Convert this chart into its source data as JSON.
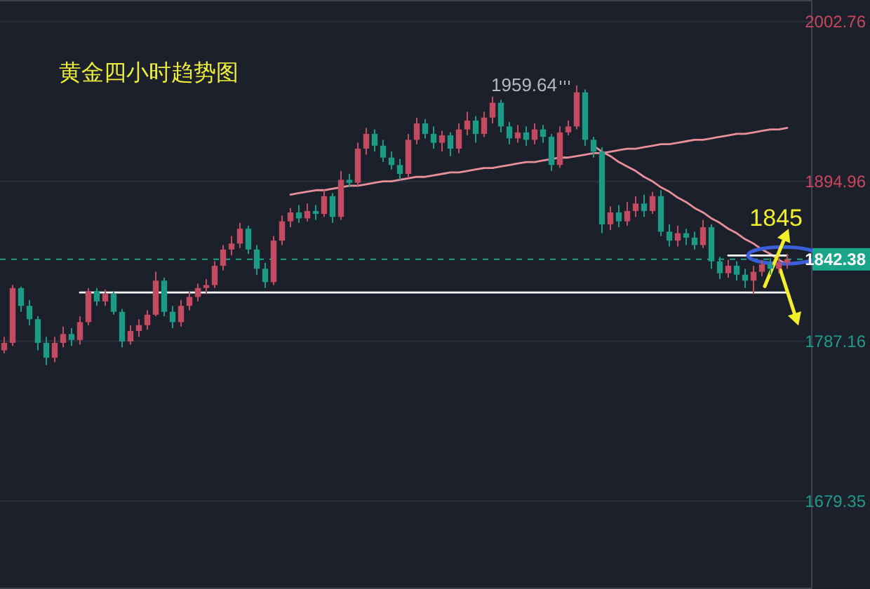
{
  "chart_data": {
    "type": "candlestick",
    "title": "黄金四小时趋势图",
    "categories": [
      null,
      null,
      null,
      null,
      null,
      null,
      null,
      null,
      null,
      null,
      null,
      null,
      null,
      null,
      null,
      null,
      null,
      null,
      null,
      null,
      null,
      null,
      null,
      null,
      null,
      null,
      null,
      null,
      null,
      null,
      null,
      null,
      null,
      null,
      null,
      null,
      null,
      null,
      null,
      null,
      null,
      null,
      null,
      null,
      null,
      null,
      null,
      null,
      null,
      null,
      null,
      null,
      null,
      null,
      null,
      null,
      null,
      null,
      null,
      null,
      null,
      null,
      null,
      null,
      null,
      null,
      null,
      null,
      null,
      null,
      null,
      null,
      null,
      null,
      null,
      null,
      null,
      null,
      null,
      null,
      null,
      null,
      null,
      null,
      null,
      null,
      null,
      null,
      null,
      null,
      null,
      null,
      null,
      null
    ],
    "ohlc": [
      [
        1781,
        1790,
        1779,
        1786
      ],
      [
        1786,
        1825,
        1784,
        1823
      ],
      [
        1823,
        1824,
        1807,
        1811
      ],
      [
        1811,
        1815,
        1798,
        1802
      ],
      [
        1802,
        1804,
        1781,
        1786
      ],
      [
        1786,
        1790,
        1771,
        1776
      ],
      [
        1776,
        1790,
        1773,
        1786
      ],
      [
        1786,
        1797,
        1783,
        1792
      ],
      [
        1792,
        1796,
        1784,
        1788
      ],
      [
        1788,
        1804,
        1785,
        1800
      ],
      [
        1800,
        1823,
        1798,
        1821
      ],
      [
        1821,
        1823,
        1811,
        1814
      ],
      [
        1814,
        1822,
        1811,
        1819
      ],
      [
        1819,
        1821,
        1805,
        1807
      ],
      [
        1807,
        1809,
        1783,
        1787
      ],
      [
        1787,
        1798,
        1785,
        1794
      ],
      [
        1794,
        1802,
        1790,
        1798
      ],
      [
        1798,
        1808,
        1795,
        1805
      ],
      [
        1805,
        1834,
        1804,
        1828
      ],
      [
        1828,
        1830,
        1804,
        1807
      ],
      [
        1807,
        1811,
        1796,
        1800
      ],
      [
        1800,
        1815,
        1797,
        1811
      ],
      [
        1811,
        1821,
        1808,
        1817
      ],
      [
        1817,
        1826,
        1814,
        1823
      ],
      [
        1823,
        1829,
        1819,
        1825
      ],
      [
        1825,
        1841,
        1823,
        1838
      ],
      [
        1838,
        1852,
        1835,
        1849
      ],
      [
        1849,
        1858,
        1845,
        1853
      ],
      [
        1853,
        1867,
        1850,
        1863
      ],
      [
        1863,
        1865,
        1846,
        1849
      ],
      [
        1849,
        1852,
        1832,
        1836
      ],
      [
        1836,
        1840,
        1823,
        1827
      ],
      [
        1827,
        1858,
        1825,
        1855
      ],
      [
        1855,
        1872,
        1852,
        1868
      ],
      [
        1868,
        1877,
        1864,
        1874
      ],
      [
        1874,
        1879,
        1867,
        1870
      ],
      [
        1870,
        1880,
        1868,
        1875
      ],
      [
        1875,
        1879,
        1869,
        1873
      ],
      [
        1873,
        1889,
        1871,
        1885
      ],
      [
        1885,
        1887,
        1867,
        1871
      ],
      [
        1871,
        1902,
        1869,
        1896
      ],
      [
        1896,
        1900,
        1891,
        1894
      ],
      [
        1894,
        1921,
        1892,
        1917
      ],
      [
        1917,
        1931,
        1913,
        1927
      ],
      [
        1927,
        1930,
        1915,
        1919
      ],
      [
        1919,
        1923,
        1908,
        1911
      ],
      [
        1911,
        1915,
        1903,
        1906
      ],
      [
        1906,
        1910,
        1896,
        1900
      ],
      [
        1900,
        1927,
        1897,
        1923
      ],
      [
        1923,
        1938,
        1920,
        1934
      ],
      [
        1934,
        1937,
        1924,
        1927
      ],
      [
        1927,
        1932,
        1917,
        1921
      ],
      [
        1921,
        1929,
        1915,
        1926
      ],
      [
        1926,
        1928,
        1912,
        1917
      ],
      [
        1917,
        1934,
        1914,
        1930
      ],
      [
        1930,
        1942,
        1926,
        1936
      ],
      [
        1936,
        1939,
        1921,
        1927
      ],
      [
        1927,
        1942,
        1925,
        1938
      ],
      [
        1938,
        1952,
        1934,
        1948
      ],
      [
        1948,
        1950,
        1928,
        1932
      ],
      [
        1932,
        1935,
        1920,
        1924
      ],
      [
        1924,
        1933,
        1921,
        1928
      ],
      [
        1928,
        1932,
        1919,
        1923
      ],
      [
        1923,
        1934,
        1920,
        1930
      ],
      [
        1930,
        1933,
        1921,
        1925
      ],
      [
        1925,
        1927,
        1902,
        1906
      ],
      [
        1906,
        1932,
        1904,
        1928
      ],
      [
        1928,
        1936,
        1926,
        1932
      ],
      [
        1932,
        1959.64,
        1930,
        1955
      ],
      [
        1955,
        1957,
        1919,
        1923
      ],
      [
        1923,
        1925,
        1911,
        1915
      ],
      [
        1915,
        1918,
        1860,
        1866
      ],
      [
        1866,
        1878,
        1862,
        1874
      ],
      [
        1874,
        1879,
        1864,
        1868
      ],
      [
        1868,
        1881,
        1865,
        1875
      ],
      [
        1875,
        1885,
        1871,
        1880
      ],
      [
        1880,
        1886,
        1871,
        1875
      ],
      [
        1875,
        1888,
        1873,
        1885
      ],
      [
        1885,
        1889,
        1858,
        1861
      ],
      [
        1861,
        1866,
        1851,
        1855
      ],
      [
        1855,
        1865,
        1851,
        1860
      ],
      [
        1860,
        1863,
        1852,
        1857
      ],
      [
        1857,
        1861,
        1849,
        1852
      ],
      [
        1852,
        1869,
        1850,
        1864
      ],
      [
        1864,
        1866,
        1836,
        1841
      ],
      [
        1841,
        1844,
        1829,
        1833
      ],
      [
        1833,
        1842,
        1830,
        1838
      ],
      [
        1838,
        1841,
        1828,
        1832
      ],
      [
        1832,
        1836,
        1823,
        1828
      ],
      [
        1828,
        1838,
        1819,
        1834
      ],
      [
        1834,
        1842,
        1831,
        1839
      ],
      [
        1839,
        1843,
        1832,
        1836
      ],
      [
        1836,
        1844,
        1833,
        1840
      ],
      [
        1840,
        1846,
        1836,
        1842.38
      ]
    ],
    "series": [
      {
        "type": "line",
        "color": "#e8909a",
        "values": [
          null,
          null,
          null,
          null,
          null,
          null,
          null,
          null,
          null,
          null,
          null,
          null,
          null,
          null,
          null,
          null,
          null,
          null,
          null,
          null,
          null,
          null,
          null,
          null,
          null,
          null,
          null,
          null,
          null,
          null,
          null,
          null,
          null,
          null,
          1886,
          1887,
          1888,
          1889,
          1889,
          1890,
          1891,
          1892,
          1892,
          1893,
          1894,
          1895,
          1895,
          1896,
          1897,
          1898,
          1898,
          1899,
          1900,
          1901,
          1901,
          1902,
          1903,
          1904,
          1904,
          1905,
          1906,
          1907,
          1908,
          1908,
          1909,
          1910,
          1911,
          1911,
          1912,
          1913,
          1914,
          1914,
          1915,
          1916,
          1917,
          1917,
          1918,
          1919,
          1920,
          1920,
          1921,
          1922,
          1923,
          1923,
          1924,
          1925,
          1926,
          1927,
          1927,
          1928,
          1929,
          1930,
          1930,
          1931
        ]
      },
      {
        "type": "line",
        "color": "#e8909a",
        "values": [
          null,
          null,
          null,
          null,
          null,
          null,
          null,
          null,
          null,
          null,
          null,
          null,
          null,
          null,
          null,
          null,
          null,
          null,
          null,
          null,
          null,
          null,
          null,
          null,
          null,
          null,
          null,
          null,
          null,
          null,
          null,
          null,
          null,
          null,
          null,
          null,
          null,
          null,
          null,
          null,
          null,
          null,
          null,
          null,
          null,
          null,
          null,
          null,
          null,
          null,
          null,
          null,
          null,
          null,
          null,
          null,
          null,
          null,
          null,
          null,
          null,
          null,
          null,
          null,
          null,
          null,
          null,
          null,
          null,
          null,
          1919,
          1915,
          1912,
          1908,
          1905,
          1902,
          1898,
          1895,
          1891,
          1888,
          1884,
          1881,
          1877,
          1874,
          1870,
          1867,
          1863,
          1860,
          1856,
          1853,
          1849,
          1846,
          1842,
          1839
        ]
      },
      {
        "type": "line",
        "color": "#ffffff",
        "values": [
          null,
          null,
          null,
          null,
          null,
          null,
          null,
          null,
          null,
          1820,
          1820,
          1820,
          1820,
          1820,
          1820,
          1820,
          1820,
          1820,
          1820,
          1820,
          1820,
          1820,
          1820,
          1820,
          1820,
          1820,
          1820,
          1820,
          1820,
          1820,
          1820,
          1820,
          1820,
          1820,
          1820,
          1820,
          1820,
          1820,
          1820,
          1820,
          1820,
          1820,
          1820,
          1820,
          1820,
          1820,
          1820,
          1820,
          1820,
          1820,
          1820,
          1820,
          1820,
          1820,
          1820,
          1820,
          1820,
          1820,
          1820,
          1820,
          1820,
          1820,
          1820,
          1820,
          1820,
          1820,
          1820,
          1820,
          1820,
          1820,
          1820,
          1820,
          1820,
          1820,
          1820,
          1820,
          1820,
          1820,
          1820,
          1820,
          1820,
          1820,
          1820,
          1820,
          1820,
          1820,
          1820,
          1820,
          1820,
          1820,
          1820,
          1820,
          1820,
          1820
        ]
      },
      {
        "type": "line",
        "color": "#ffffff",
        "values": [
          null,
          null,
          null,
          null,
          null,
          null,
          null,
          null,
          null,
          null,
          null,
          null,
          null,
          null,
          null,
          null,
          null,
          null,
          null,
          null,
          null,
          null,
          null,
          null,
          null,
          null,
          null,
          null,
          null,
          null,
          null,
          null,
          null,
          null,
          null,
          null,
          null,
          null,
          null,
          null,
          null,
          null,
          null,
          null,
          null,
          null,
          null,
          null,
          null,
          null,
          null,
          null,
          null,
          null,
          null,
          null,
          null,
          null,
          null,
          null,
          null,
          null,
          null,
          null,
          null,
          null,
          null,
          null,
          null,
          null,
          null,
          null,
          null,
          null,
          null,
          null,
          null,
          null,
          null,
          null,
          null,
          null,
          null,
          null,
          null,
          null,
          1845,
          1845,
          1845,
          1845,
          1845,
          1845,
          1845,
          1845
        ]
      }
    ],
    "ylim": [
      1620,
      2017.3
    ],
    "yticks": [
      2002.76,
      1894.96,
      1787.16,
      1679.35
    ],
    "grid": "y",
    "tick_labels": "y",
    "ref_lines": [
      {
        "axis": "y",
        "value": 1842.38,
        "label": "1842.38",
        "color": "#1aa58a",
        "line_style": "dashed"
      }
    ],
    "annotations": [
      "1959.64",
      {
        "text": "1845",
        "y": 1845
      }
    ]
  }
}
